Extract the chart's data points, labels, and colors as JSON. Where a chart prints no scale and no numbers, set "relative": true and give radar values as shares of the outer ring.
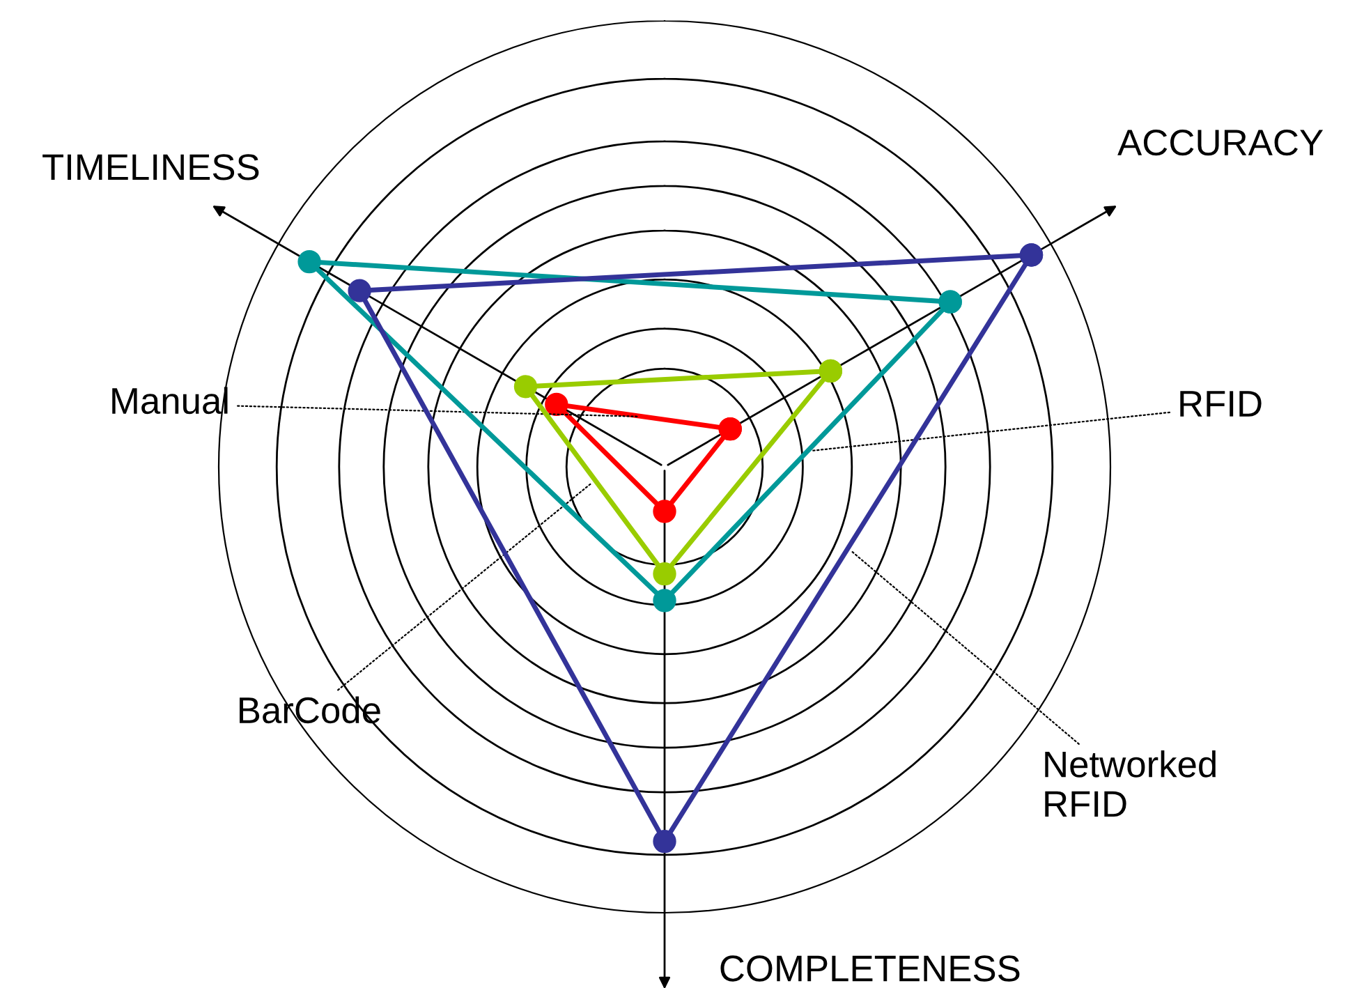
{
  "chart_data": {
    "type": "radar",
    "relative": true,
    "grid": true,
    "legend": false,
    "marker": "circle",
    "line_style": "solid",
    "categories": [
      "ACCURACY",
      "COMPLETENESS",
      "TIMELINESS"
    ],
    "series": [
      {
        "name": "Manual",
        "color": "#ff0000",
        "values": [
          0.17,
          0.1,
          0.28
        ]
      },
      {
        "name": "BarCode",
        "color": "#99cc00",
        "values": [
          0.43,
          0.24,
          0.36
        ]
      },
      {
        "name": "RFID",
        "color": "#009999",
        "values": [
          0.74,
          0.3,
          0.92
        ]
      },
      {
        "name": "Networked\nRFID",
        "color": "#333399",
        "values": [
          0.95,
          0.84,
          0.79
        ]
      }
    ]
  }
}
